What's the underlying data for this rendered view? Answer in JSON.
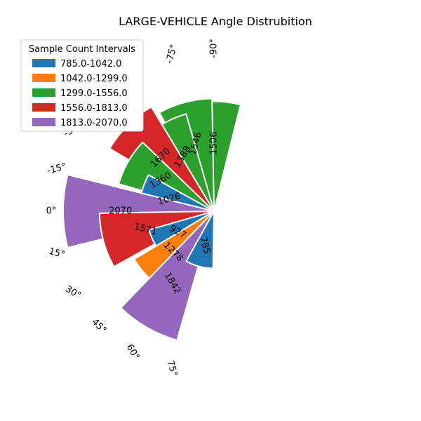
{
  "chart_data": {
    "type": "polar-bar",
    "title": "LARGE-VEHICLE Angle Distrubition",
    "angles": [
      "-90°",
      "-75°",
      "-60°",
      "-45°",
      "-30°",
      "-15°",
      "0°",
      "15°",
      "30°",
      "45°",
      "60°",
      "75°"
    ],
    "values": [
      1506,
      1546,
      1388,
      1670,
      1360,
      1026,
      2070,
      1571,
      927,
      1278,
      1842,
      785
    ],
    "legend": {
      "title": "Sample Count Intervals",
      "position": "top-left",
      "entries": [
        {
          "label": "785.0-1042.0",
          "color": "#1f77b4"
        },
        {
          "label": "1042.0-1299.0",
          "color": "#ff7f0e"
        },
        {
          "label": "1299.0-1556.0",
          "color": "#2ca02c"
        },
        {
          "label": "1556.0-1813.0",
          "color": "#d62728"
        },
        {
          "label": "1813.0-2070.0",
          "color": "#9467bd"
        }
      ]
    },
    "interval_edges": [
      785.0,
      1042.0,
      1299.0,
      1556.0,
      1813.0,
      2070.0
    ]
  }
}
